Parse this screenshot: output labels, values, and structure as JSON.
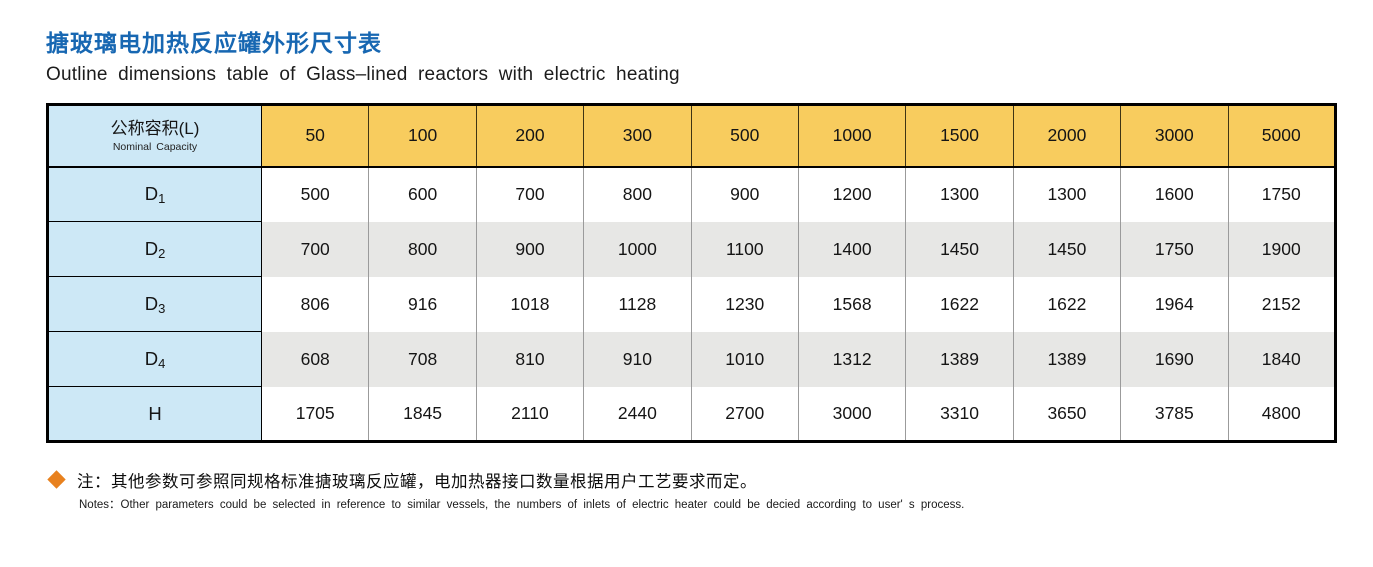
{
  "page": {
    "title_zh": "搪玻璃电加热反应罐外形尺寸表",
    "title_en": "Outline dimensions table of Glass–lined reactors with electric heating"
  },
  "table": {
    "corner": {
      "zh": "公称容积(L)",
      "en": "Nominal Capacity"
    },
    "capacities": [
      "50",
      "100",
      "200",
      "300",
      "500",
      "1000",
      "1500",
      "2000",
      "3000",
      "5000"
    ],
    "rows": [
      {
        "label_base": "D",
        "label_sub": "1",
        "values": [
          "500",
          "600",
          "700",
          "800",
          "900",
          "1200",
          "1300",
          "1300",
          "1600",
          "1750"
        ]
      },
      {
        "label_base": "D",
        "label_sub": "2",
        "values": [
          "700",
          "800",
          "900",
          "1000",
          "1100",
          "1400",
          "1450",
          "1450",
          "1750",
          "1900"
        ]
      },
      {
        "label_base": "D",
        "label_sub": "3",
        "values": [
          "806",
          "916",
          "1018",
          "1128",
          "1230",
          "1568",
          "1622",
          "1622",
          "1964",
          "2152"
        ]
      },
      {
        "label_base": "D",
        "label_sub": "4",
        "values": [
          "608",
          "708",
          "810",
          "910",
          "1010",
          "1312",
          "1389",
          "1389",
          "1690",
          "1840"
        ]
      },
      {
        "label_base": "H",
        "label_sub": "",
        "values": [
          "1705",
          "1845",
          "2110",
          "2440",
          "2700",
          "3000",
          "3310",
          "3650",
          "3785",
          "4800"
        ]
      }
    ]
  },
  "notes": {
    "zh": "注：其他参数可参照同规格标准搪玻璃反应罐，电加热器接口数量根据用户工艺要求而定。",
    "en": "Notes：Other parameters could be selected in reference to similar vessels, the numbers of inlets of electric heater could be decied according to user' s process."
  },
  "colors": {
    "title_blue": "#1767b2",
    "header_yellow": "#f8cc5e",
    "label_blue": "#cde8f6",
    "row_gray": "#e7e7e5",
    "diamond_orange": "#e8811e"
  }
}
